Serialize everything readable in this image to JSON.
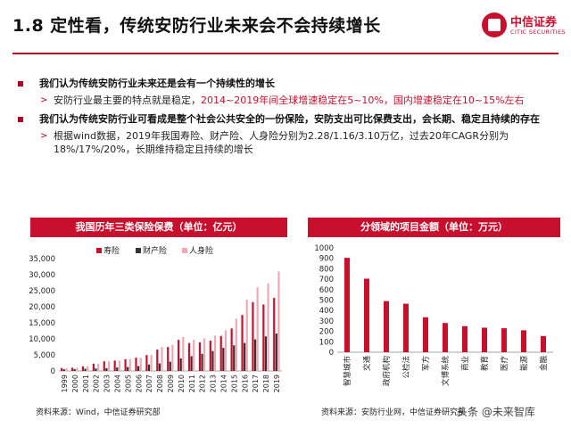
{
  "slide": {
    "title": "1.8 定性看，传统安防行业未来会不会持续增长",
    "logo_cn": "中信证券",
    "logo_en": "CITIC SECURITIES",
    "bullets": [
      {
        "text": "我们认为传统安防行业未来还是会有一个持续性的增长",
        "sub": {
          "pre": "安防行业最主要的特点就是稳定，",
          "hl": "2014~2019年间全球增速稳定在5~10%，国内增速稳定在10~15%左右"
        }
      },
      {
        "text": "我们认为传统安防行业可看成是整个社会公共安全的一份保险，安防支出可比保费支出，会长期、稳定且持续的存在",
        "sub": {
          "pre": "根据wind数据，2019年我国寿险、财产险、人身险分别为2.28/1.16/3.10万亿，过去20年CAGR分别为18%/17%/20%，长期维持稳定且持续的增长",
          "hl": ""
        }
      }
    ],
    "chart1_header": "我国历年三类保险保费（单位：亿元）",
    "chart2_header": "分领域的项目金额（单位：万元）",
    "source1": "资料来源：Wind，中信证券研究部",
    "source2": "资料来源：安防行业网，中信证券研究部",
    "watermark": "头条 @未来智库"
  },
  "chart_data": [
    {
      "type": "bar",
      "categories": [
        "1999",
        "2000",
        "2001",
        "2002",
        "2003",
        "2004",
        "2005",
        "2006",
        "2007",
        "2008",
        "2009",
        "2010",
        "2011",
        "2012",
        "2013",
        "2014",
        "2015",
        "2016",
        "2017",
        "2018",
        "2019"
      ],
      "series": [
        {
          "name": "寿险",
          "color": "#c8102e",
          "values": [
            900,
            1000,
            1420,
            2280,
            3010,
            3230,
            3650,
            4130,
            4950,
            6650,
            7450,
            9680,
            8700,
            8910,
            9430,
            10900,
            13240,
            17440,
            21460,
            20720,
            22750
          ]
        },
        {
          "name": "财产险",
          "color": "#333333",
          "values": [
            520,
            600,
            690,
            780,
            870,
            1090,
            1230,
            1510,
            2000,
            2340,
            2880,
            3900,
            4620,
            5330,
            6210,
            7200,
            7990,
            8720,
            9830,
            10770,
            11650
          ]
        },
        {
          "name": "人身险",
          "color": "#f0a8b4",
          "values": [
            870,
            990,
            1420,
            2270,
            3010,
            3230,
            3700,
            4080,
            4960,
            7440,
            8140,
            10630,
            9700,
            10160,
            11010,
            12690,
            16290,
            22230,
            26050,
            27250,
            30990
          ]
        }
      ],
      "ylim": [
        0,
        35000
      ],
      "yticks": [
        "0",
        "5,000",
        "10,000",
        "15,000",
        "20,000",
        "25,000",
        "30,000",
        "35,000"
      ],
      "legend": "top-center"
    },
    {
      "type": "bar",
      "categories": [
        "智慧城市",
        "交通",
        "政府机构",
        "公检法",
        "军方",
        "文博系统",
        "商业",
        "教育",
        "医疗",
        "能源",
        "金融"
      ],
      "values": [
        905,
        705,
        490,
        465,
        335,
        280,
        250,
        235,
        230,
        210,
        155
      ],
      "ylim": [
        0,
        1000
      ],
      "yticks": [
        "0",
        "100",
        "200",
        "300",
        "400",
        "500",
        "600",
        "700",
        "800",
        "900",
        "1000"
      ],
      "color": "#c8102e"
    }
  ]
}
